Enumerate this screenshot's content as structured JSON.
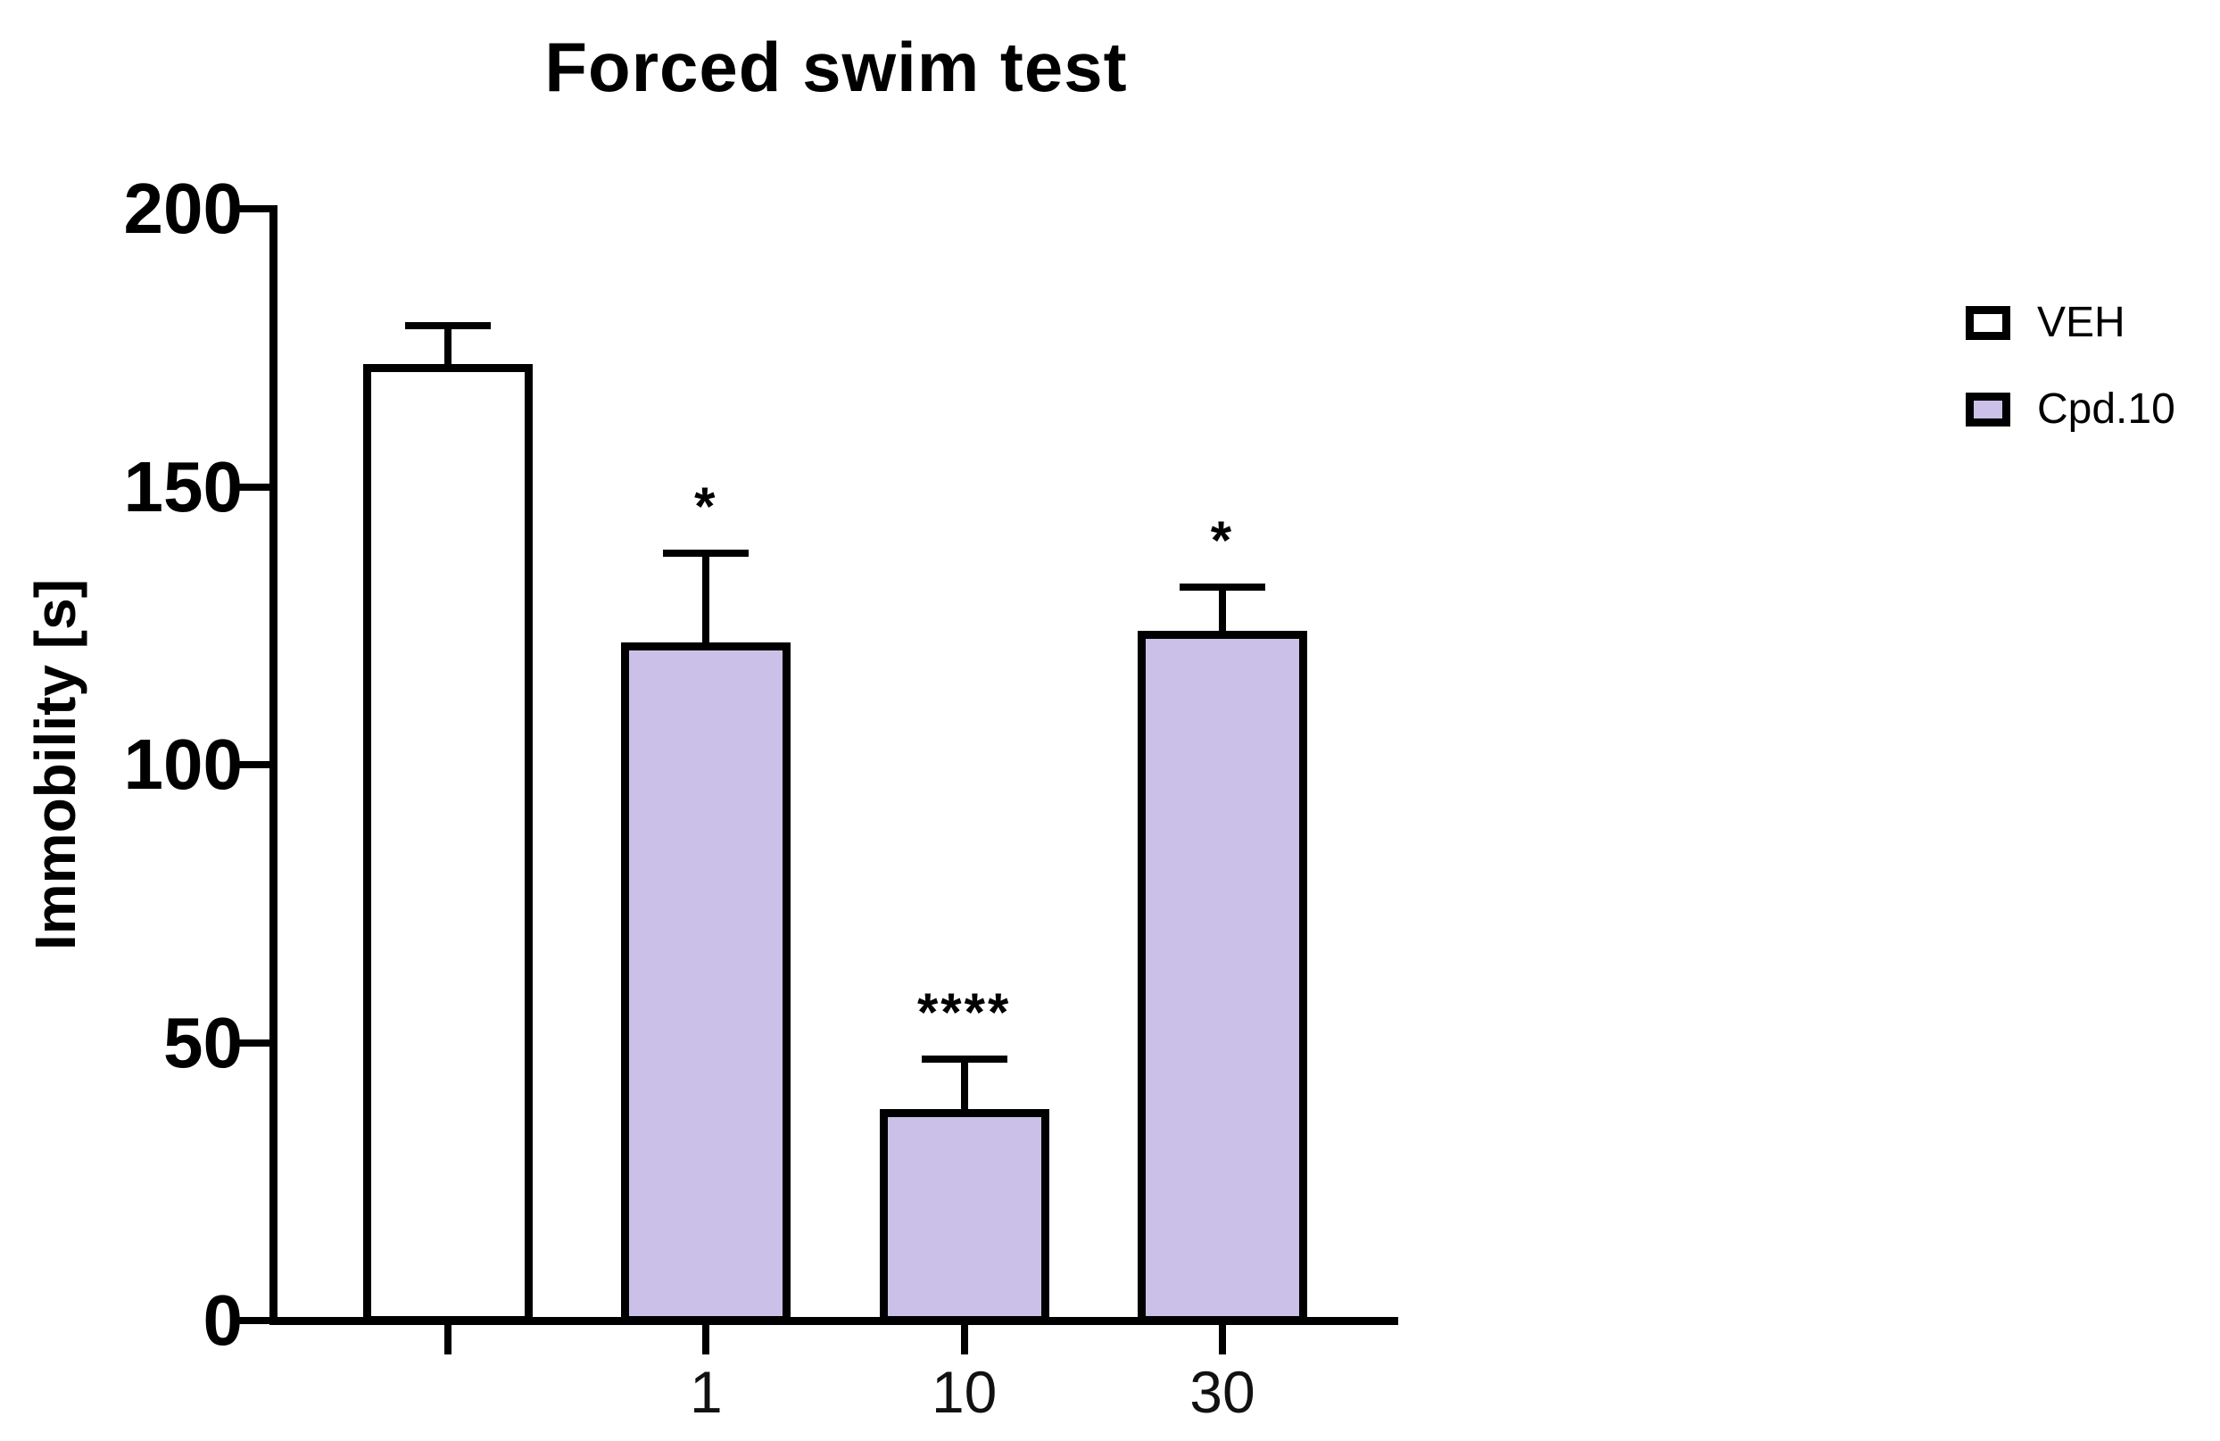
{
  "chart_data": {
    "type": "bar",
    "title": "Forced swim test",
    "xlabel": "",
    "ylabel": "Immobility [s]",
    "ylim": [
      0,
      200
    ],
    "yticks": [
      0,
      50,
      100,
      150,
      200
    ],
    "grid": false,
    "legend_position": "right",
    "axis_color": "#000000",
    "bar_border_color": "#000000",
    "categories": [
      "VEH",
      "Cpd.10 1",
      "Cpd.10 10",
      "Cpd.10 30"
    ],
    "x_tick_labels": [
      "",
      "1",
      "10",
      "30"
    ],
    "bars": [
      {
        "group": "VEH",
        "dose_label": "",
        "value": 172,
        "error_upper": 7,
        "fill": "#FFFFFF",
        "significance": ""
      },
      {
        "group": "Cpd.10",
        "dose_label": "1",
        "value": 122,
        "error_upper": 16,
        "fill": "#CBC0E7",
        "significance": "*"
      },
      {
        "group": "Cpd.10",
        "dose_label": "10",
        "value": 38,
        "error_upper": 9,
        "fill": "#CBC0E7",
        "significance": "****"
      },
      {
        "group": "Cpd.10",
        "dose_label": "30",
        "value": 124,
        "error_upper": 8,
        "fill": "#CBC0E7",
        "significance": "*"
      }
    ],
    "legend": [
      {
        "label": "VEH",
        "fill": "#FFFFFF"
      },
      {
        "label": "Cpd.10",
        "fill": "#CBC0E7"
      }
    ]
  }
}
